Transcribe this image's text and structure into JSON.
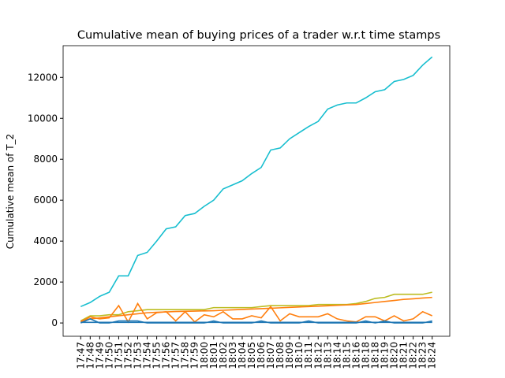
{
  "chart_data": {
    "type": "line",
    "title": "Cumulative mean of buying prices of a trader w.r.t time stamps",
    "ylabel": "Cumulative mean of T_2",
    "categories": [
      "17:47",
      "17:48",
      "17:49",
      "17:50",
      "17:51",
      "17:52",
      "17:53",
      "17:54",
      "17:55",
      "17:56",
      "17:57",
      "17:58",
      "17:59",
      "18:00",
      "18:01",
      "18:02",
      "18:03",
      "18:04",
      "18:05",
      "18:06",
      "18:07",
      "18:08",
      "18:09",
      "18:10",
      "18:11",
      "18:12",
      "18:13",
      "18:14",
      "18:15",
      "18:16",
      "18:18",
      "18:18",
      "18:19",
      "18:20",
      "18:21",
      "18:22",
      "18:23",
      "18:24"
    ],
    "ylim": [
      -650,
      13550
    ],
    "yticks": [
      0,
      2000,
      4000,
      6000,
      8000,
      10000,
      12000
    ],
    "series": [
      {
        "color": "#17becf",
        "values": [
          800,
          1000,
          1300,
          1500,
          2300,
          2300,
          3300,
          3450,
          4000,
          4600,
          4700,
          5250,
          5350,
          5700,
          6000,
          6550,
          6750,
          6950,
          7300,
          7600,
          8450,
          8550,
          9000,
          9300,
          9600,
          9850,
          10450,
          10650,
          10750,
          10750,
          11000,
          11300,
          11400,
          11800,
          11900,
          12100,
          12600,
          13000
        ]
      },
      {
        "color": "#bcbd22",
        "values": [
          100,
          350,
          350,
          400,
          400,
          550,
          600,
          650,
          650,
          650,
          650,
          650,
          650,
          650,
          750,
          750,
          750,
          750,
          750,
          800,
          850,
          850,
          850,
          850,
          850,
          900,
          900,
          900,
          900,
          950,
          1050,
          1200,
          1250,
          1400,
          1400,
          1400,
          1400,
          1500
        ]
      },
      {
        "color": "#ff7f0e",
        "values": [
          100,
          200,
          250,
          300,
          350,
          400,
          450,
          500,
          520,
          540,
          560,
          570,
          580,
          590,
          600,
          620,
          640,
          660,
          680,
          700,
          720,
          740,
          760,
          780,
          800,
          820,
          840,
          860,
          880,
          900,
          950,
          1000,
          1050,
          1100,
          1150,
          1180,
          1220,
          1250
        ]
      },
      {
        "color": "#ff7f0e",
        "values": [
          50,
          300,
          200,
          250,
          850,
          50,
          950,
          200,
          500,
          550,
          100,
          550,
          50,
          400,
          300,
          550,
          200,
          200,
          350,
          250,
          800,
          100,
          450,
          300,
          300,
          300,
          450,
          200,
          100,
          50,
          300,
          300,
          100,
          350,
          100,
          200,
          550,
          350
        ]
      },
      {
        "color": "#1f77b4",
        "values": [
          0,
          200,
          0,
          0,
          100,
          100,
          100,
          0,
          0,
          0,
          0,
          0,
          0,
          0,
          100,
          0,
          0,
          0,
          0,
          100,
          0,
          0,
          0,
          0,
          100,
          0,
          0,
          0,
          0,
          0,
          100,
          0,
          100,
          0,
          0,
          0,
          0,
          100
        ]
      },
      {
        "color": "#1f77b4",
        "values": [
          30,
          30,
          30,
          30,
          30,
          30,
          30,
          30,
          30,
          30,
          30,
          30,
          30,
          30,
          30,
          30,
          30,
          30,
          30,
          30,
          30,
          30,
          30,
          30,
          30,
          30,
          30,
          30,
          30,
          30,
          30,
          30,
          30,
          30,
          30,
          30,
          30,
          30
        ]
      }
    ]
  }
}
